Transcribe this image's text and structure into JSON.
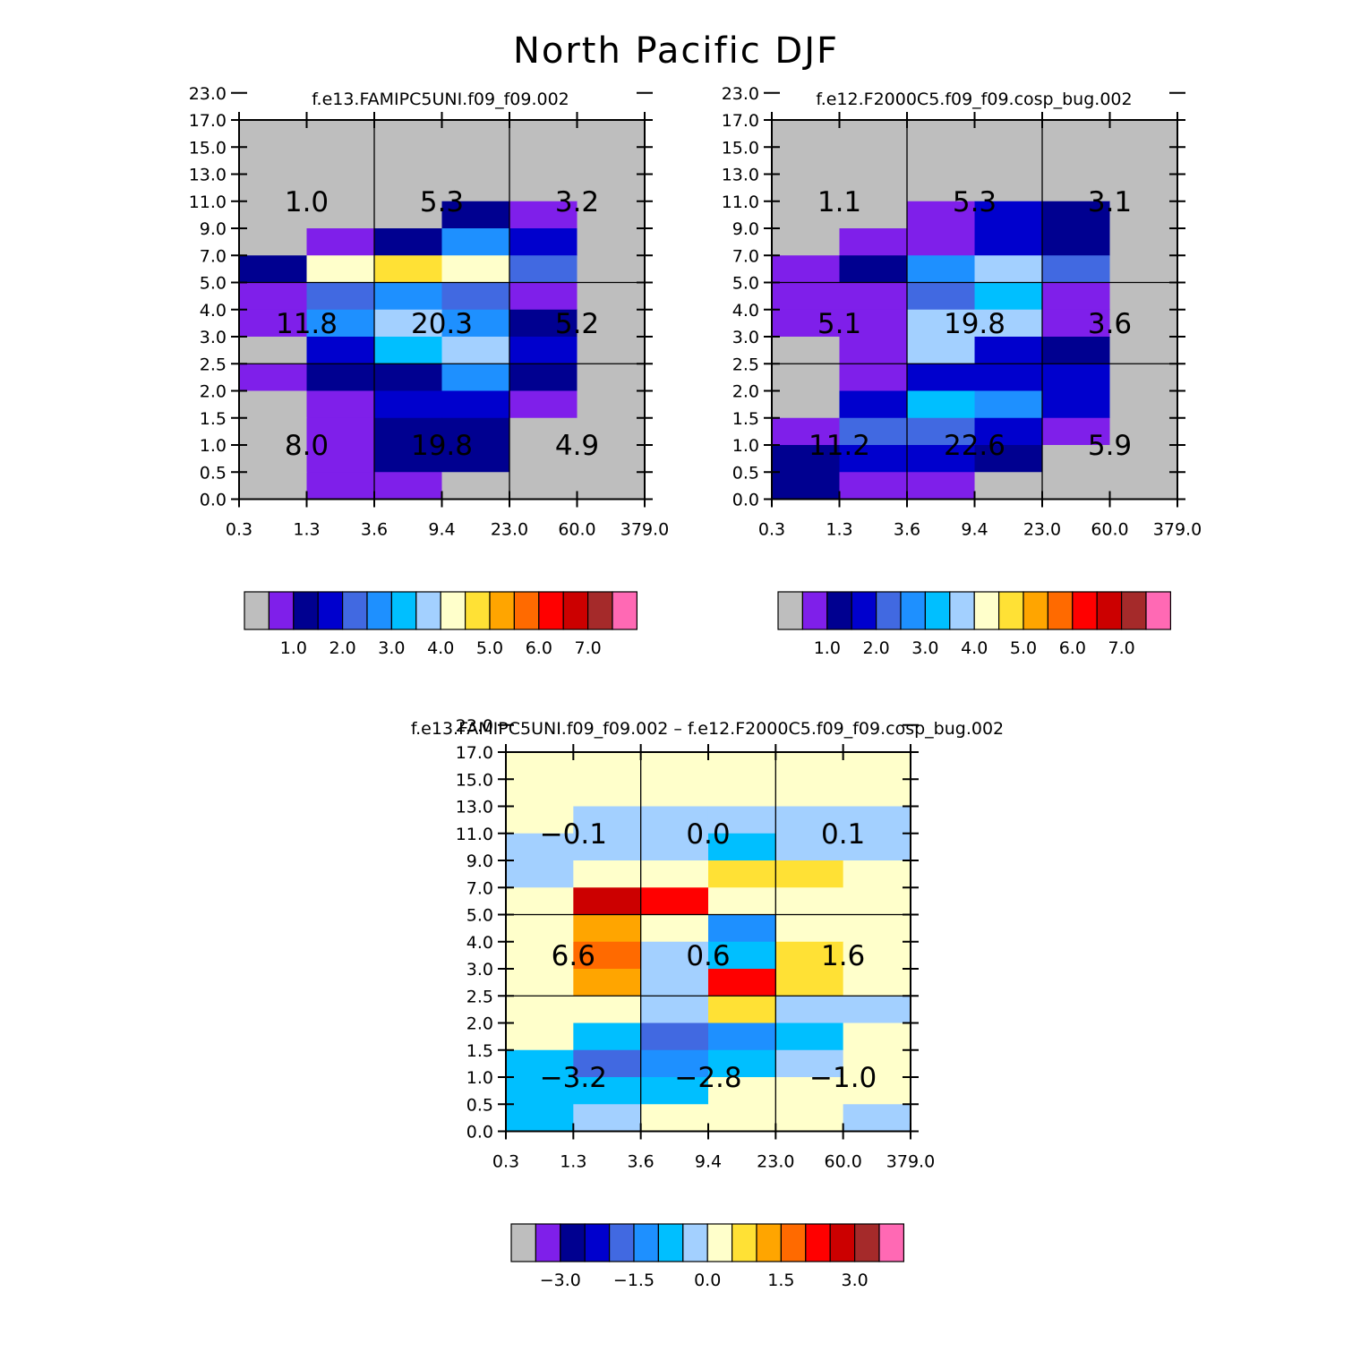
{
  "title": "North Pacific DJF",
  "palette": {
    "gray": "#bebebe",
    "purple": "#7f1fea",
    "navy": "#000090",
    "blue": "#0000cd",
    "royal": "#4169e1",
    "dodger": "#1e90ff",
    "sky": "#00bfff",
    "light": "#a3d0ff",
    "cream": "#ffffcb",
    "gold": "#ffe135",
    "orange": "#ffa500",
    "dorange": "#ff6a00",
    "red": "#ff0000",
    "dred": "#cc0000",
    "brown": "#a52a2a",
    "pink": "#ff69b4"
  },
  "chart_data": [
    {
      "type": "heatmap",
      "title": "f.e13.FAMIPC5UNI.f09_f09.002",
      "x_ticks": [
        "0.3",
        "1.3",
        "3.6",
        "9.4",
        "23.0",
        "60.0",
        "379.0"
      ],
      "y_ticks": [
        "0.0",
        "0.5",
        "1.0",
        "1.5",
        "2.0",
        "2.5",
        "3.0",
        "4.0",
        "5.0",
        "7.0",
        "9.0",
        "11.0",
        "13.0",
        "15.0",
        "17.0",
        "23.0"
      ],
      "cells": [
        [
          "gray",
          "gray",
          "gray",
          "gray",
          "gray",
          "gray"
        ],
        [
          "gray",
          "gray",
          "gray",
          "gray",
          "gray",
          "gray"
        ],
        [
          "gray",
          "gray",
          "gray",
          "gray",
          "gray",
          "gray"
        ],
        [
          "gray",
          "gray",
          "gray",
          "navy",
          "purple",
          "gray"
        ],
        [
          "gray",
          "purple",
          "navy",
          "dodger",
          "blue",
          "gray"
        ],
        [
          "navy",
          "cream",
          "gold",
          "cream",
          "royal",
          "gray"
        ],
        [
          "purple",
          "royal",
          "dodger",
          "royal",
          "purple",
          "gray"
        ],
        [
          "purple",
          "dodger",
          "light",
          "dodger",
          "navy",
          "gray"
        ],
        [
          "gray",
          "blue",
          "sky",
          "light",
          "blue",
          "gray"
        ],
        [
          "purple",
          "navy",
          "navy",
          "dodger",
          "navy",
          "gray"
        ],
        [
          "gray",
          "purple",
          "blue",
          "blue",
          "purple",
          "gray"
        ],
        [
          "gray",
          "purple",
          "navy",
          "navy",
          "gray",
          "gray"
        ],
        [
          "gray",
          "purple",
          "navy",
          "navy",
          "gray",
          "gray"
        ],
        [
          "gray",
          "purple",
          "purple",
          "gray",
          "gray",
          "gray"
        ]
      ],
      "region_labels": [
        [
          "1.0",
          "5.3",
          "3.2"
        ],
        [
          "11.8",
          "20.3",
          "5.2"
        ],
        [
          "8.0",
          "19.8",
          "4.9"
        ]
      ],
      "colorbar": {
        "colors": [
          "gray",
          "purple",
          "navy",
          "blue",
          "royal",
          "dodger",
          "sky",
          "light",
          "cream",
          "gold",
          "orange",
          "dorange",
          "red",
          "dred",
          "brown",
          "pink"
        ],
        "labels": [
          "1.0",
          "2.0",
          "3.0",
          "4.0",
          "5.0",
          "6.0",
          "7.0"
        ]
      }
    },
    {
      "type": "heatmap",
      "title": "f.e12.F2000C5.f09_f09.cosp_bug.002",
      "x_ticks": [
        "0.3",
        "1.3",
        "3.6",
        "9.4",
        "23.0",
        "60.0",
        "379.0"
      ],
      "y_ticks": [
        "0.0",
        "0.5",
        "1.0",
        "1.5",
        "2.0",
        "2.5",
        "3.0",
        "4.0",
        "5.0",
        "7.0",
        "9.0",
        "11.0",
        "13.0",
        "15.0",
        "17.0",
        "23.0"
      ],
      "cells": [
        [
          "gray",
          "gray",
          "gray",
          "gray",
          "gray",
          "gray"
        ],
        [
          "gray",
          "gray",
          "gray",
          "gray",
          "gray",
          "gray"
        ],
        [
          "gray",
          "gray",
          "gray",
          "gray",
          "gray",
          "gray"
        ],
        [
          "gray",
          "gray",
          "purple",
          "blue",
          "navy",
          "gray"
        ],
        [
          "gray",
          "purple",
          "purple",
          "blue",
          "navy",
          "gray"
        ],
        [
          "purple",
          "navy",
          "dodger",
          "light",
          "royal",
          "gray"
        ],
        [
          "purple",
          "purple",
          "royal",
          "sky",
          "purple",
          "gray"
        ],
        [
          "purple",
          "purple",
          "light",
          "light",
          "purple",
          "gray"
        ],
        [
          "gray",
          "purple",
          "light",
          "blue",
          "navy",
          "gray"
        ],
        [
          "gray",
          "purple",
          "blue",
          "blue",
          "blue",
          "gray"
        ],
        [
          "gray",
          "blue",
          "sky",
          "dodger",
          "blue",
          "gray"
        ],
        [
          "purple",
          "royal",
          "royal",
          "blue",
          "purple",
          "gray"
        ],
        [
          "navy",
          "blue",
          "blue",
          "navy",
          "gray",
          "gray"
        ],
        [
          "navy",
          "purple",
          "purple",
          "gray",
          "gray",
          "gray"
        ]
      ],
      "region_labels": [
        [
          "1.1",
          "5.3",
          "3.1"
        ],
        [
          "5.1",
          "19.8",
          "3.6"
        ],
        [
          "11.2",
          "22.6",
          "5.9"
        ]
      ],
      "colorbar": {
        "colors": [
          "gray",
          "purple",
          "navy",
          "blue",
          "royal",
          "dodger",
          "sky",
          "light",
          "cream",
          "gold",
          "orange",
          "dorange",
          "red",
          "dred",
          "brown",
          "pink"
        ],
        "labels": [
          "1.0",
          "2.0",
          "3.0",
          "4.0",
          "5.0",
          "6.0",
          "7.0"
        ]
      }
    },
    {
      "type": "heatmap",
      "title": "f.e13.FAMIPC5UNI.f09_f09.002 – f.e12.F2000C5.f09_f09.cosp_bug.002",
      "x_ticks": [
        "0.3",
        "1.3",
        "3.6",
        "9.4",
        "23.0",
        "60.0",
        "379.0"
      ],
      "y_ticks": [
        "0.0",
        "0.5",
        "1.0",
        "1.5",
        "2.0",
        "2.5",
        "3.0",
        "4.0",
        "5.0",
        "7.0",
        "9.0",
        "11.0",
        "13.0",
        "15.0",
        "17.0",
        "23.0"
      ],
      "cells": [
        [
          "cream",
          "cream",
          "cream",
          "cream",
          "cream",
          "cream"
        ],
        [
          "cream",
          "cream",
          "cream",
          "cream",
          "cream",
          "cream"
        ],
        [
          "cream",
          "light",
          "light",
          "light",
          "light",
          "light"
        ],
        [
          "light",
          "light",
          "light",
          "sky",
          "light",
          "light"
        ],
        [
          "light",
          "cream",
          "cream",
          "gold",
          "gold",
          "cream"
        ],
        [
          "cream",
          "dred",
          "red",
          "cream",
          "cream",
          "cream"
        ],
        [
          "cream",
          "orange",
          "cream",
          "dodger",
          "cream",
          "cream"
        ],
        [
          "cream",
          "dorange",
          "light",
          "sky",
          "gold",
          "cream"
        ],
        [
          "cream",
          "orange",
          "light",
          "red",
          "gold",
          "cream"
        ],
        [
          "cream",
          "cream",
          "light",
          "gold",
          "light",
          "light"
        ],
        [
          "cream",
          "sky",
          "royal",
          "dodger",
          "sky",
          "cream"
        ],
        [
          "sky",
          "royal",
          "dodger",
          "sky",
          "light",
          "cream"
        ],
        [
          "sky",
          "sky",
          "sky",
          "cream",
          "cream",
          "cream"
        ],
        [
          "sky",
          "light",
          "cream",
          "cream",
          "cream",
          "light"
        ]
      ],
      "region_labels": [
        [
          "−0.1",
          "0.0",
          "0.1"
        ],
        [
          "6.6",
          "0.6",
          "1.6"
        ],
        [
          "−3.2",
          "−2.8",
          "−1.0"
        ]
      ],
      "colorbar": {
        "colors": [
          "gray",
          "purple",
          "navy",
          "blue",
          "royal",
          "dodger",
          "sky",
          "light",
          "cream",
          "gold",
          "orange",
          "dorange",
          "red",
          "dred",
          "brown",
          "pink"
        ],
        "labels": [
          "−3.0",
          "−1.5",
          "0.0",
          "1.5",
          "3.0"
        ]
      }
    }
  ]
}
